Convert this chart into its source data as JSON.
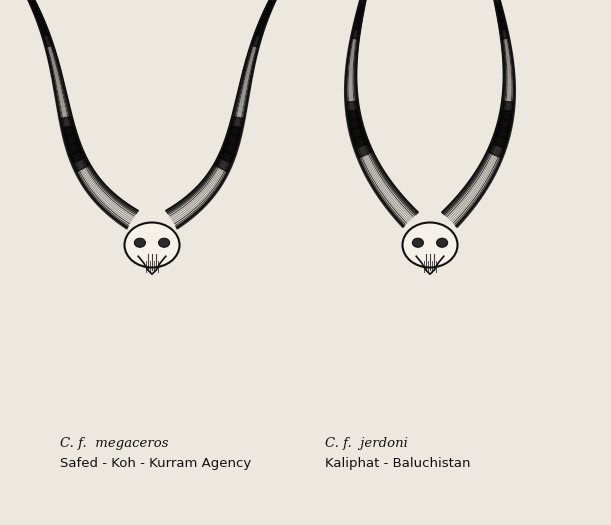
{
  "background_color": "#ede8df",
  "border_color": "#bbbbbb",
  "left_label_line1": "C. f.  megaceros",
  "left_label_line2": "Safed - Koh - Kurram Agency",
  "right_label_line1": "C. f.  jerdoni",
  "right_label_line2": "Kaliphat - Baluchistan",
  "label_fontsize": 9.5,
  "italic_fontsize": 9.5,
  "fig_width": 6.11,
  "fig_height": 5.25,
  "color": "#111111"
}
